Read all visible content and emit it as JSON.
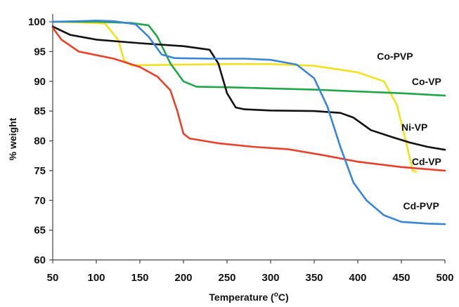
{
  "chart_data": {
    "type": "line",
    "title": "",
    "xlabel": "Temperature (",
    "xlabel_sup": "o",
    "xlabel_end": "C)",
    "ylabel": "% weight",
    "xlim": [
      50,
      500
    ],
    "ylim": [
      60,
      100
    ],
    "xticks": [
      50,
      100,
      150,
      200,
      250,
      300,
      350,
      400,
      450,
      500
    ],
    "yticks": [
      60,
      65,
      70,
      75,
      80,
      85,
      90,
      95,
      100
    ],
    "grid": false,
    "legend": "inline labels",
    "series": [
      {
        "name": "Co-PVP",
        "color": "#f2e11c",
        "points": [
          [
            50,
            100
          ],
          [
            80,
            99.9
          ],
          [
            110,
            99.7
          ],
          [
            125,
            97
          ],
          [
            132,
            93.5
          ],
          [
            140,
            92.7
          ],
          [
            200,
            92.8
          ],
          [
            250,
            92.9
          ],
          [
            300,
            92.9
          ],
          [
            350,
            92.6
          ],
          [
            400,
            91.5
          ],
          [
            430,
            90
          ],
          [
            445,
            86
          ],
          [
            455,
            80
          ],
          [
            463,
            75
          ],
          [
            467,
            74.8
          ]
        ]
      },
      {
        "name": "Co-VP",
        "color": "#22a64a",
        "points": [
          [
            50,
            100
          ],
          [
            100,
            100
          ],
          [
            140,
            99.8
          ],
          [
            160,
            99.4
          ],
          [
            170,
            97.5
          ],
          [
            185,
            93
          ],
          [
            200,
            90
          ],
          [
            215,
            89.1
          ],
          [
            250,
            89
          ],
          [
            300,
            88.8
          ],
          [
            350,
            88.6
          ],
          [
            400,
            88.3
          ],
          [
            450,
            88
          ],
          [
            500,
            87.6
          ]
        ]
      },
      {
        "name": "Ni-VP",
        "color": "#111111",
        "points": [
          [
            50,
            99.2
          ],
          [
            70,
            97.8
          ],
          [
            100,
            97
          ],
          [
            150,
            96.4
          ],
          [
            200,
            95.9
          ],
          [
            230,
            95.3
          ],
          [
            240,
            93
          ],
          [
            250,
            88
          ],
          [
            260,
            85.6
          ],
          [
            270,
            85.3
          ],
          [
            300,
            85.1
          ],
          [
            350,
            85
          ],
          [
            380,
            84.7
          ],
          [
            395,
            83.9
          ],
          [
            415,
            81.8
          ],
          [
            440,
            80.6
          ],
          [
            460,
            79.7
          ],
          [
            480,
            79
          ],
          [
            500,
            78.5
          ]
        ]
      },
      {
        "name": "Cd-VP",
        "color": "#e8412b",
        "points": [
          [
            50,
            99
          ],
          [
            60,
            97
          ],
          [
            80,
            95
          ],
          [
            120,
            93.8
          ],
          [
            150,
            92.4
          ],
          [
            170,
            90.8
          ],
          [
            185,
            88.5
          ],
          [
            193,
            85
          ],
          [
            200,
            81.2
          ],
          [
            207,
            80.4
          ],
          [
            240,
            79.6
          ],
          [
            280,
            79
          ],
          [
            320,
            78.6
          ],
          [
            360,
            77.6
          ],
          [
            400,
            76.5
          ],
          [
            450,
            75.6
          ],
          [
            500,
            75
          ]
        ]
      },
      {
        "name": "Cd-PVP",
        "color": "#3a86d4",
        "points": [
          [
            50,
            100
          ],
          [
            80,
            100.1
          ],
          [
            100,
            100.2
          ],
          [
            120,
            100.1
          ],
          [
            145,
            99.6
          ],
          [
            160,
            97.5
          ],
          [
            175,
            94.5
          ],
          [
            190,
            93.9
          ],
          [
            230,
            93.8
          ],
          [
            270,
            93.8
          ],
          [
            300,
            93.6
          ],
          [
            330,
            92.8
          ],
          [
            350,
            90.5
          ],
          [
            365,
            85.8
          ],
          [
            380,
            79
          ],
          [
            395,
            73
          ],
          [
            410,
            70
          ],
          [
            430,
            67.5
          ],
          [
            450,
            66.4
          ],
          [
            480,
            66.1
          ],
          [
            500,
            66
          ]
        ]
      }
    ],
    "series_label_x": {
      "Co-PVP": 422,
      "Co-VP": 462,
      "Ni-VP": 450,
      "Cd-VP": 462,
      "Cd-PVP": 452
    },
    "series_label_y": {
      "Co-PVP": 93.6,
      "Co-VP": 89.4,
      "Ni-VP": 81.7,
      "Cd-VP": 75.9,
      "Cd-PVP": 68.5
    }
  }
}
